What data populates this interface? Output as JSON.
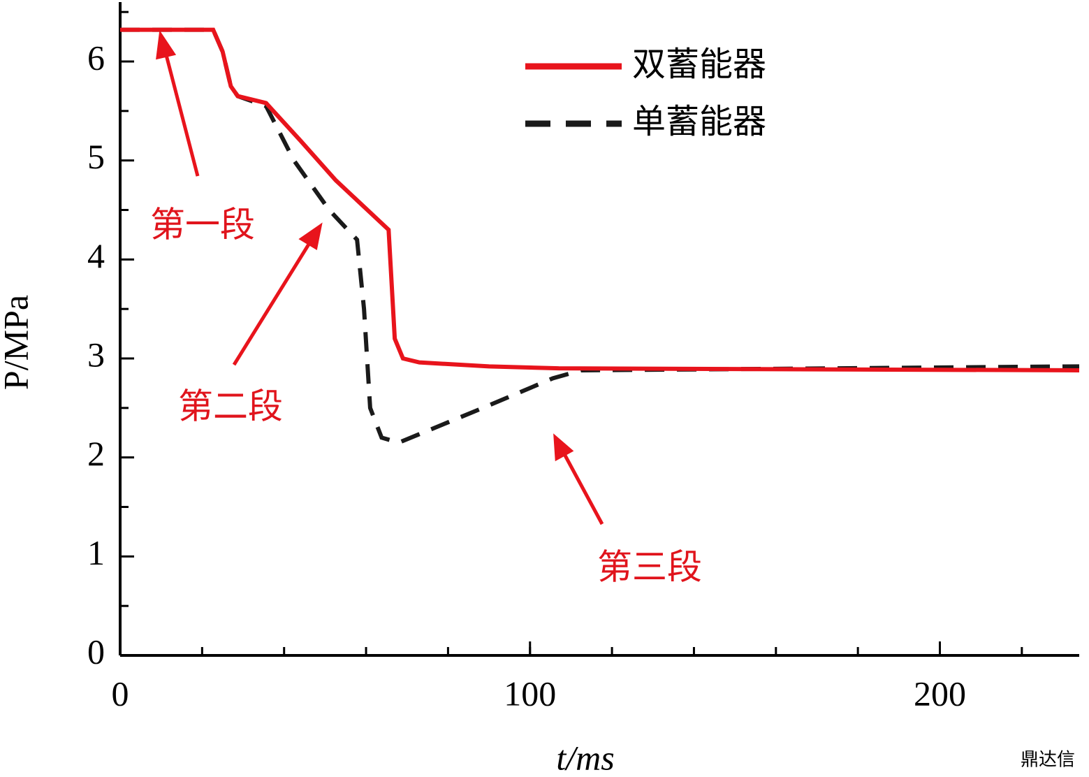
{
  "chart_data": {
    "type": "line",
    "x_label": "t/ms",
    "y_label": "P/MPa",
    "xlim": [
      0,
      234
    ],
    "ylim": [
      0,
      6.6
    ],
    "xticks": [
      0,
      100,
      200
    ],
    "yticks": [
      0,
      1,
      2,
      3,
      4,
      5,
      6
    ],
    "legend": "upper right",
    "series": [
      {
        "name": "双蓄能器",
        "color": "#e8141c",
        "style": "solid",
        "x": [
          0,
          22.7,
          25,
          27,
          28.7,
          35.6,
          44,
          52.6,
          65.5,
          67,
          69,
          73,
          90,
          107,
          234
        ],
        "values": [
          6.32,
          6.32,
          6.1,
          5.75,
          5.65,
          5.58,
          5.2,
          4.8,
          4.3,
          3.2,
          3.0,
          2.96,
          2.92,
          2.9,
          2.88
        ]
      },
      {
        "name": "单蓄能器",
        "color": "#1a1a1a",
        "style": "dashed",
        "x": [
          0,
          22.7,
          25,
          27,
          28.7,
          35.6,
          42.4,
          51,
          57.8,
          59.5,
          61,
          63.8,
          68,
          88.5,
          105.6,
          112.5,
          234
        ],
        "values": [
          6.32,
          6.32,
          6.1,
          5.75,
          5.65,
          5.55,
          5.0,
          4.5,
          4.2,
          3.5,
          2.5,
          2.2,
          2.15,
          2.5,
          2.8,
          2.88,
          2.92
        ]
      }
    ],
    "annotations": [
      "第一段",
      "第二段",
      "第三段"
    ],
    "watermark": "鼎达信"
  }
}
